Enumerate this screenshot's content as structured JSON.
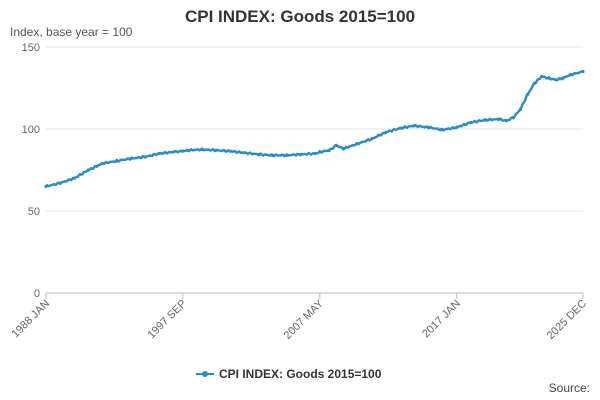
{
  "chart_data": {
    "type": "line",
    "title": "CPI INDEX: Goods 2015=100",
    "ylabel": "Index, base year = 100",
    "source_label": "Source:",
    "ylim": [
      0,
      150
    ],
    "yticks": [
      0,
      50,
      100,
      150
    ],
    "x_tick_labels": [
      "1988 JAN",
      "1997 SEP",
      "2007 MAY",
      "2017 JAN",
      "2025 DEC"
    ],
    "x_tick_months": [
      0,
      116,
      232,
      348,
      455
    ],
    "grid": "horizontal",
    "legend_position": "bottom",
    "series_color": "#2a8cc4",
    "series": [
      {
        "name": "CPI INDEX: Goods 2015=100",
        "x": [
          "1988 JAN",
          "1989 JAN",
          "1990 JAN",
          "1991 JAN",
          "1992 JAN",
          "1993 JAN",
          "1994 JAN",
          "1995 JAN",
          "1996 JAN",
          "1997 JAN",
          "1997 SEP",
          "1998 JAN",
          "1999 JAN",
          "2000 JAN",
          "2001 JAN",
          "2002 JAN",
          "2003 JAN",
          "2004 JAN",
          "2005 JAN",
          "2006 JAN",
          "2007 JAN",
          "2007 MAY",
          "2008 JAN",
          "2008 JUL",
          "2009 JAN",
          "2010 JAN",
          "2011 JAN",
          "2012 JAN",
          "2013 JAN",
          "2014 JAN",
          "2015 JAN",
          "2016 JAN",
          "2017 JAN",
          "2018 JAN",
          "2019 JAN",
          "2020 JAN",
          "2020 JUL",
          "2021 JAN",
          "2021 JUL",
          "2022 JAN",
          "2022 JUL",
          "2023 JAN",
          "2023 JUL",
          "2024 JAN",
          "2024 JUL",
          "2025 JAN",
          "2025 DEC"
        ],
        "values": [
          65,
          67,
          70,
          75,
          79,
          80.5,
          82,
          83,
          85,
          86,
          86.5,
          87,
          87.5,
          87,
          86.5,
          85.5,
          84.5,
          84,
          84,
          84.5,
          85,
          86,
          87,
          90,
          88,
          91,
          94,
          98,
          100.5,
          102,
          101,
          99.5,
          101,
          104,
          105.5,
          106,
          105,
          107,
          112,
          121,
          128,
          132,
          131,
          130,
          131,
          133,
          135
        ]
      }
    ]
  }
}
